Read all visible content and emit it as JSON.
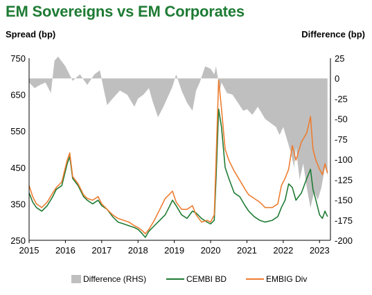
{
  "title": "EM Sovereigns vs EM Corporates",
  "colors": {
    "title": "#1e7b34",
    "difference": "#bfbfbf",
    "cembi": "#1e7b34",
    "embig": "#ed7d31"
  },
  "chart_data": {
    "type": "line",
    "left_axis": {
      "label": "Spread (bp)",
      "min": 250,
      "max": 750,
      "ticks": [
        250,
        350,
        450,
        550,
        650,
        750
      ]
    },
    "right_axis": {
      "label": "Difference (bp)",
      "min": -200,
      "max": 25,
      "ticks": [
        -200,
        -175,
        -150,
        -125,
        -100,
        -75,
        -50,
        -25,
        0,
        25
      ]
    },
    "x_axis": {
      "min": 2015,
      "max": 2023.3,
      "ticks": [
        2015,
        2016,
        2017,
        2018,
        2019,
        2020,
        2021,
        2022,
        2023
      ]
    },
    "legend_position": "bottom",
    "series": [
      {
        "name": "Difference (RHS)",
        "axis": "right",
        "style": "area",
        "points": [
          [
            2015.0,
            -5
          ],
          [
            2015.15,
            -12
          ],
          [
            2015.3,
            -8
          ],
          [
            2015.45,
            -5
          ],
          [
            2015.6,
            -18
          ],
          [
            2015.7,
            22
          ],
          [
            2015.8,
            27
          ],
          [
            2016.0,
            15
          ],
          [
            2016.2,
            -3
          ],
          [
            2016.4,
            5
          ],
          [
            2016.6,
            -8
          ],
          [
            2016.8,
            5
          ],
          [
            2016.95,
            10
          ],
          [
            2017.05,
            -12
          ],
          [
            2017.15,
            -33
          ],
          [
            2017.3,
            -25
          ],
          [
            2017.5,
            -15
          ],
          [
            2017.7,
            -20
          ],
          [
            2017.9,
            -35
          ],
          [
            2018.0,
            -25
          ],
          [
            2018.15,
            -20
          ],
          [
            2018.3,
            -12
          ],
          [
            2018.4,
            -28
          ],
          [
            2018.55,
            -48
          ],
          [
            2018.7,
            -35
          ],
          [
            2018.8,
            -25
          ],
          [
            2018.95,
            -10
          ],
          [
            2019.05,
            5
          ],
          [
            2019.2,
            -15
          ],
          [
            2019.35,
            -30
          ],
          [
            2019.5,
            -40
          ],
          [
            2019.6,
            -15
          ],
          [
            2019.7,
            -5
          ],
          [
            2019.85,
            15
          ],
          [
            2020.0,
            12
          ],
          [
            2020.1,
            5
          ],
          [
            2020.15,
            15
          ],
          [
            2020.2,
            0
          ],
          [
            2020.25,
            -15
          ],
          [
            2020.3,
            -5
          ],
          [
            2020.45,
            -18
          ],
          [
            2020.6,
            -20
          ],
          [
            2020.75,
            -30
          ],
          [
            2020.9,
            -40
          ],
          [
            2021.0,
            -38
          ],
          [
            2021.15,
            -45
          ],
          [
            2021.3,
            -35
          ],
          [
            2021.5,
            -50
          ],
          [
            2021.65,
            -55
          ],
          [
            2021.8,
            -60
          ],
          [
            2021.9,
            -70
          ],
          [
            2022.0,
            -60
          ],
          [
            2022.1,
            -75
          ],
          [
            2022.2,
            -90
          ],
          [
            2022.3,
            -110
          ],
          [
            2022.35,
            -85
          ],
          [
            2022.45,
            -125
          ],
          [
            2022.55,
            -105
          ],
          [
            2022.65,
            -135
          ],
          [
            2022.75,
            -160
          ],
          [
            2022.85,
            -140
          ],
          [
            2022.95,
            -150
          ],
          [
            2023.05,
            -135
          ],
          [
            2023.15,
            -110
          ],
          [
            2023.22,
            -120
          ]
        ]
      },
      {
        "name": "CEMBI BD",
        "axis": "left",
        "style": "line",
        "points": [
          [
            2015.0,
            380
          ],
          [
            2015.1,
            355
          ],
          [
            2015.2,
            340
          ],
          [
            2015.35,
            330
          ],
          [
            2015.5,
            345
          ],
          [
            2015.65,
            370
          ],
          [
            2015.75,
            390
          ],
          [
            2015.9,
            400
          ],
          [
            2016.05,
            460
          ],
          [
            2016.12,
            480
          ],
          [
            2016.2,
            420
          ],
          [
            2016.35,
            400
          ],
          [
            2016.5,
            370
          ],
          [
            2016.6,
            360
          ],
          [
            2016.75,
            350
          ],
          [
            2016.9,
            360
          ],
          [
            2017.0,
            345
          ],
          [
            2017.15,
            335
          ],
          [
            2017.3,
            315
          ],
          [
            2017.45,
            300
          ],
          [
            2017.6,
            295
          ],
          [
            2017.75,
            290
          ],
          [
            2017.9,
            285
          ],
          [
            2018.0,
            280
          ],
          [
            2018.1,
            270
          ],
          [
            2018.2,
            258
          ],
          [
            2018.3,
            275
          ],
          [
            2018.45,
            290
          ],
          [
            2018.6,
            305
          ],
          [
            2018.75,
            320
          ],
          [
            2018.85,
            340
          ],
          [
            2018.95,
            360
          ],
          [
            2019.05,
            345
          ],
          [
            2019.2,
            320
          ],
          [
            2019.35,
            310
          ],
          [
            2019.5,
            330
          ],
          [
            2019.6,
            325
          ],
          [
            2019.75,
            310
          ],
          [
            2019.9,
            300
          ],
          [
            2020.0,
            295
          ],
          [
            2020.1,
            305
          ],
          [
            2020.15,
            420
          ],
          [
            2020.22,
            610
          ],
          [
            2020.3,
            560
          ],
          [
            2020.4,
            450
          ],
          [
            2020.5,
            420
          ],
          [
            2020.65,
            380
          ],
          [
            2020.8,
            370
          ],
          [
            2020.95,
            345
          ],
          [
            2021.05,
            330
          ],
          [
            2021.2,
            315
          ],
          [
            2021.35,
            305
          ],
          [
            2021.5,
            300
          ],
          [
            2021.7,
            305
          ],
          [
            2021.85,
            315
          ],
          [
            2021.95,
            340
          ],
          [
            2022.05,
            360
          ],
          [
            2022.15,
            405
          ],
          [
            2022.25,
            395
          ],
          [
            2022.35,
            360
          ],
          [
            2022.5,
            380
          ],
          [
            2022.65,
            420
          ],
          [
            2022.75,
            445
          ],
          [
            2022.82,
            390
          ],
          [
            2022.9,
            360
          ],
          [
            2023.0,
            320
          ],
          [
            2023.08,
            310
          ],
          [
            2023.15,
            330
          ],
          [
            2023.22,
            315
          ]
        ]
      },
      {
        "name": "EMBIG Div",
        "axis": "left",
        "style": "line",
        "points": [
          [
            2015.0,
            400
          ],
          [
            2015.1,
            370
          ],
          [
            2015.2,
            350
          ],
          [
            2015.35,
            340
          ],
          [
            2015.5,
            355
          ],
          [
            2015.65,
            380
          ],
          [
            2015.75,
            395
          ],
          [
            2015.9,
            410
          ],
          [
            2016.05,
            470
          ],
          [
            2016.12,
            490
          ],
          [
            2016.2,
            425
          ],
          [
            2016.35,
            405
          ],
          [
            2016.5,
            375
          ],
          [
            2016.6,
            365
          ],
          [
            2016.75,
            360
          ],
          [
            2016.9,
            370
          ],
          [
            2017.0,
            350
          ],
          [
            2017.15,
            335
          ],
          [
            2017.3,
            320
          ],
          [
            2017.45,
            310
          ],
          [
            2017.6,
            305
          ],
          [
            2017.75,
            300
          ],
          [
            2017.9,
            290
          ],
          [
            2018.0,
            285
          ],
          [
            2018.1,
            278
          ],
          [
            2018.2,
            268
          ],
          [
            2018.3,
            280
          ],
          [
            2018.45,
            305
          ],
          [
            2018.6,
            335
          ],
          [
            2018.75,
            365
          ],
          [
            2018.85,
            375
          ],
          [
            2018.95,
            385
          ],
          [
            2019.05,
            355
          ],
          [
            2019.2,
            335
          ],
          [
            2019.35,
            335
          ],
          [
            2019.5,
            345
          ],
          [
            2019.6,
            320
          ],
          [
            2019.75,
            300
          ],
          [
            2019.9,
            305
          ],
          [
            2020.0,
            300
          ],
          [
            2020.1,
            320
          ],
          [
            2020.15,
            470
          ],
          [
            2020.22,
            690
          ],
          [
            2020.3,
            610
          ],
          [
            2020.4,
            500
          ],
          [
            2020.5,
            470
          ],
          [
            2020.65,
            440
          ],
          [
            2020.8,
            415
          ],
          [
            2020.95,
            390
          ],
          [
            2021.05,
            375
          ],
          [
            2021.2,
            365
          ],
          [
            2021.35,
            355
          ],
          [
            2021.5,
            340
          ],
          [
            2021.7,
            340
          ],
          [
            2021.85,
            350
          ],
          [
            2021.95,
            400
          ],
          [
            2022.05,
            420
          ],
          [
            2022.15,
            445
          ],
          [
            2022.25,
            510
          ],
          [
            2022.35,
            470
          ],
          [
            2022.5,
            520
          ],
          [
            2022.65,
            545
          ],
          [
            2022.75,
            590
          ],
          [
            2022.82,
            500
          ],
          [
            2022.9,
            470
          ],
          [
            2023.0,
            445
          ],
          [
            2023.08,
            430
          ],
          [
            2023.15,
            460
          ],
          [
            2023.22,
            435
          ]
        ]
      }
    ]
  }
}
